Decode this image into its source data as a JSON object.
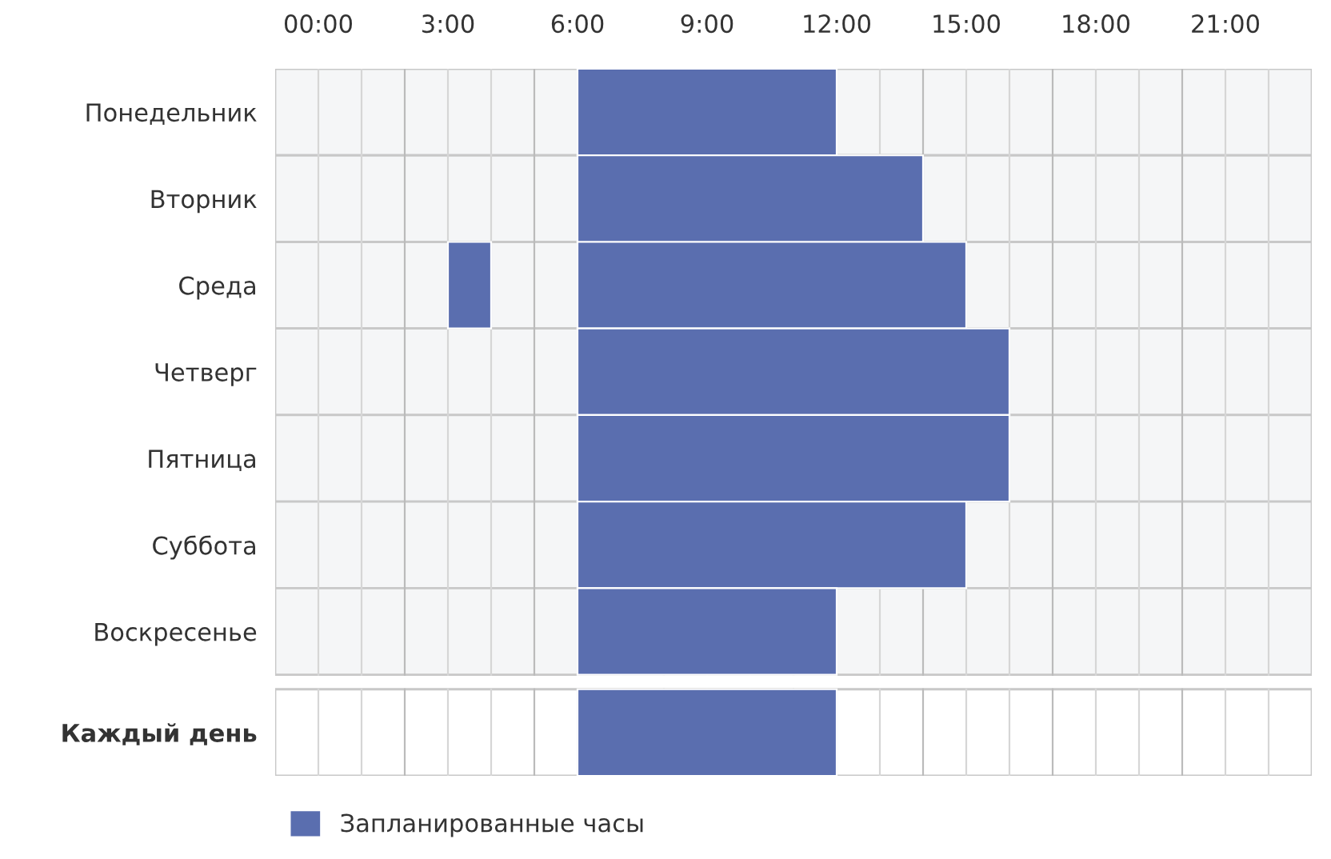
{
  "chart_data": {
    "type": "bar",
    "orientation": "horizontal",
    "categories": [
      "Понедельник",
      "Вторник",
      "Среда",
      "Четверг",
      "Пятница",
      "Суббота",
      "Воскресенье",
      "Каждый день"
    ],
    "series": [
      {
        "name": "Запланированные часы",
        "color": "#5a6eaf",
        "base": [
          6,
          6,
          6,
          6,
          6,
          6,
          6,
          6
        ],
        "values": [
          6,
          8,
          9,
          10,
          10,
          9,
          6,
          6
        ]
      },
      {
        "color": "#5a6eaf",
        "base": [
          null,
          null,
          3,
          null,
          null,
          null,
          null,
          null
        ],
        "values": [
          null,
          null,
          1,
          null,
          null,
          null,
          null,
          null
        ]
      }
    ],
    "xlim": [
      -1,
      23
    ],
    "xticks": [
      {
        "value": 0,
        "label": "00:00"
      },
      {
        "value": 3,
        "label": "3:00"
      },
      {
        "value": 6,
        "label": "6:00"
      },
      {
        "value": 9,
        "label": "9:00"
      },
      {
        "value": 12,
        "label": "12:00"
      },
      {
        "value": 15,
        "label": "15:00"
      },
      {
        "value": 18,
        "label": "18:00"
      },
      {
        "value": 21,
        "label": "21:00"
      }
    ],
    "grid": true,
    "legend": "bottom left"
  }
}
